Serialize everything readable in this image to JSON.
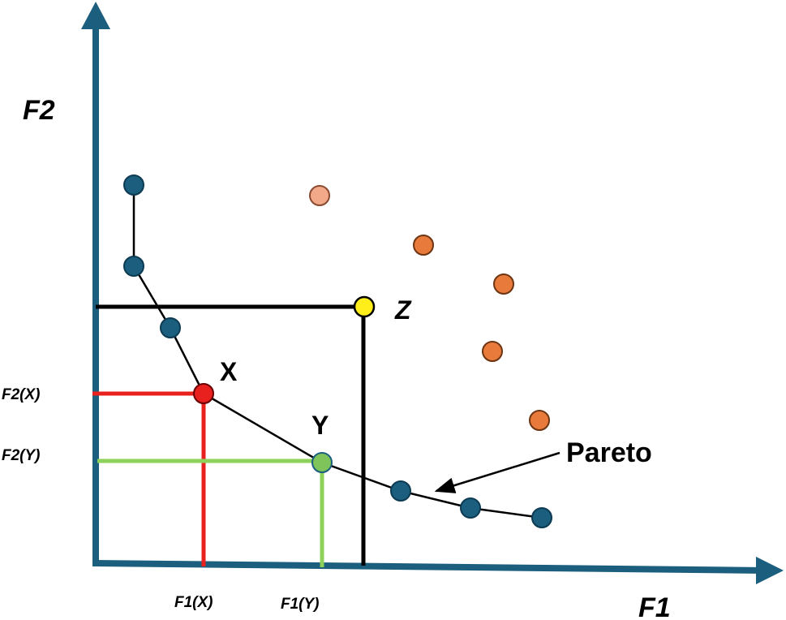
{
  "axes": {
    "x_title": "F1",
    "y_title": "F2",
    "x_ticks": {
      "x": "F1(X)",
      "y": "F1(Y)"
    },
    "y_ticks": {
      "x": "F2(X)",
      "y": "F2(Y)"
    }
  },
  "labels": {
    "point_x": "X",
    "point_y": "Y",
    "point_z": "Z",
    "pareto": "Pareto"
  },
  "colors": {
    "axis": "#1b5e7e",
    "pareto_point": "#1b5e7e",
    "dominated_point": "#e87a3c",
    "dominated_light": "#f2a98a",
    "point_x": "#e8201e",
    "point_y": "#7fc45a",
    "point_z": "#ffee1a",
    "guide_x": "#e8201e",
    "guide_y": "#8dd05a",
    "guide_z": "#000000"
  }
}
